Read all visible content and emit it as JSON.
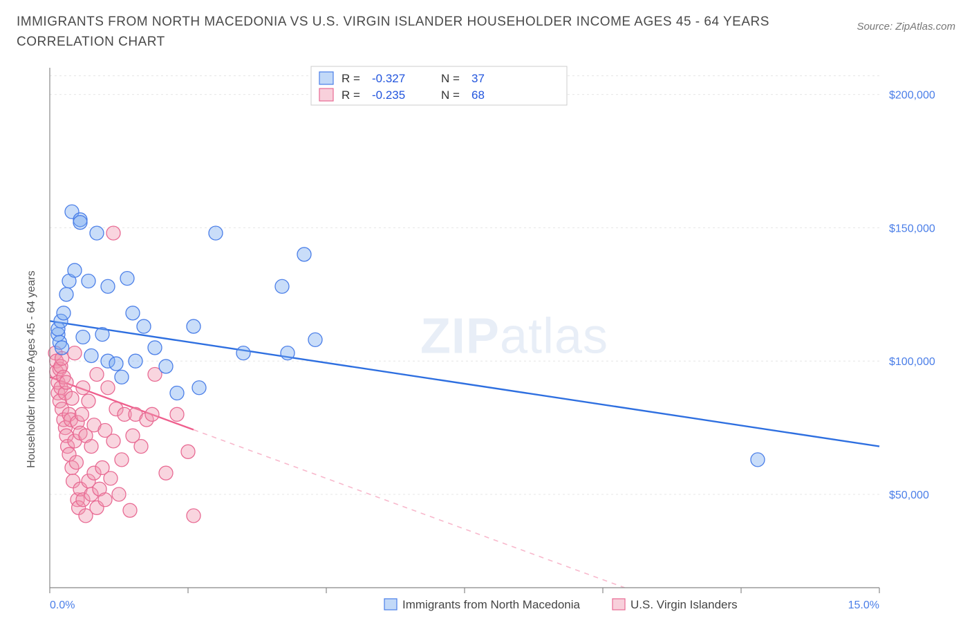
{
  "title": "IMMIGRANTS FROM NORTH MACEDONIA VS U.S. VIRGIN ISLANDER HOUSEHOLDER INCOME AGES 45 - 64 YEARS CORRELATION CHART",
  "source": "Source: ZipAtlas.com",
  "ylabel": "Householder Income Ages 45 - 64 years",
  "watermark_a": "ZIP",
  "watermark_b": "atlas",
  "chart": {
    "type": "scatter",
    "background_color": "#ffffff",
    "grid_color": "#e5e5e5",
    "xlim": [
      0.0,
      15.0
    ],
    "ylim": [
      15000,
      210000
    ],
    "xticks": [
      0.0,
      2.5,
      5.0,
      7.5,
      10.0,
      12.5,
      15.0
    ],
    "xtick_labels_visible": {
      "0.0": "0.0%",
      "15.0": "15.0%"
    },
    "yticks": [
      50000,
      100000,
      150000,
      200000
    ],
    "ytick_labels": [
      "$50,000",
      "$100,000",
      "$150,000",
      "$200,000"
    ],
    "series_a": {
      "name": "Immigrants from North Macedonia",
      "color_fill": "rgba(120,170,240,0.40)",
      "color_stroke": "#4a7ee8",
      "marker_radius": 10,
      "R": -0.327,
      "N": 37,
      "trend": {
        "x1": 0.0,
        "y1": 115000,
        "x2": 15.0,
        "y2": 68000,
        "solid_until_x": 15.0
      },
      "points": [
        [
          0.15,
          110000
        ],
        [
          0.15,
          112000
        ],
        [
          0.18,
          107000
        ],
        [
          0.2,
          115000
        ],
        [
          0.22,
          105000
        ],
        [
          0.25,
          118000
        ],
        [
          0.3,
          125000
        ],
        [
          0.35,
          130000
        ],
        [
          0.4,
          156000
        ],
        [
          0.45,
          134000
        ],
        [
          0.55,
          153000
        ],
        [
          0.6,
          109000
        ],
        [
          0.7,
          130000
        ],
        [
          0.75,
          102000
        ],
        [
          0.85,
          148000
        ],
        [
          0.95,
          110000
        ],
        [
          1.05,
          128000
        ],
        [
          1.05,
          100000
        ],
        [
          1.2,
          99000
        ],
        [
          1.3,
          94000
        ],
        [
          1.4,
          131000
        ],
        [
          1.5,
          118000
        ],
        [
          1.55,
          100000
        ],
        [
          1.7,
          113000
        ],
        [
          1.9,
          105000
        ],
        [
          2.1,
          98000
        ],
        [
          2.3,
          88000
        ],
        [
          2.6,
          113000
        ],
        [
          3.0,
          148000
        ],
        [
          2.7,
          90000
        ],
        [
          3.5,
          103000
        ],
        [
          4.2,
          128000
        ],
        [
          4.3,
          103000
        ],
        [
          4.6,
          140000
        ],
        [
          4.8,
          108000
        ],
        [
          12.8,
          63000
        ],
        [
          0.55,
          152000
        ]
      ]
    },
    "series_b": {
      "name": "U.S. Virgin Islanders",
      "color_fill": "rgba(240,150,175,0.40)",
      "color_stroke": "#e86a93",
      "marker_radius": 10,
      "R": -0.235,
      "N": 68,
      "trend": {
        "x1": 0.0,
        "y1": 94000,
        "x2": 15.0,
        "y2": -20000,
        "solid_until_x": 2.6
      },
      "points": [
        [
          0.1,
          103000
        ],
        [
          0.12,
          100000
        ],
        [
          0.12,
          96000
        ],
        [
          0.15,
          92000
        ],
        [
          0.15,
          88000
        ],
        [
          0.18,
          97000
        ],
        [
          0.18,
          85000
        ],
        [
          0.2,
          98000
        ],
        [
          0.2,
          90000
        ],
        [
          0.22,
          82000
        ],
        [
          0.22,
          101000
        ],
        [
          0.25,
          78000
        ],
        [
          0.25,
          94000
        ],
        [
          0.28,
          75000
        ],
        [
          0.28,
          88000
        ],
        [
          0.3,
          72000
        ],
        [
          0.3,
          92000
        ],
        [
          0.32,
          68000
        ],
        [
          0.35,
          80000
        ],
        [
          0.35,
          65000
        ],
        [
          0.38,
          78000
        ],
        [
          0.4,
          60000
        ],
        [
          0.4,
          86000
        ],
        [
          0.42,
          55000
        ],
        [
          0.45,
          70000
        ],
        [
          0.45,
          103000
        ],
        [
          0.48,
          62000
        ],
        [
          0.5,
          48000
        ],
        [
          0.5,
          77000
        ],
        [
          0.52,
          45000
        ],
        [
          0.55,
          73000
        ],
        [
          0.55,
          52000
        ],
        [
          0.58,
          80000
        ],
        [
          0.6,
          48000
        ],
        [
          0.6,
          90000
        ],
        [
          0.65,
          42000
        ],
        [
          0.65,
          72000
        ],
        [
          0.7,
          55000
        ],
        [
          0.7,
          85000
        ],
        [
          0.75,
          50000
        ],
        [
          0.75,
          68000
        ],
        [
          0.8,
          76000
        ],
        [
          0.8,
          58000
        ],
        [
          0.85,
          45000
        ],
        [
          0.85,
          95000
        ],
        [
          0.9,
          52000
        ],
        [
          0.95,
          60000
        ],
        [
          1.0,
          74000
        ],
        [
          1.0,
          48000
        ],
        [
          1.05,
          90000
        ],
        [
          1.1,
          56000
        ],
        [
          1.15,
          148000
        ],
        [
          1.15,
          70000
        ],
        [
          1.2,
          82000
        ],
        [
          1.25,
          50000
        ],
        [
          1.3,
          63000
        ],
        [
          1.35,
          80000
        ],
        [
          1.45,
          44000
        ],
        [
          1.5,
          72000
        ],
        [
          1.55,
          80000
        ],
        [
          1.65,
          68000
        ],
        [
          1.75,
          78000
        ],
        [
          1.85,
          80000
        ],
        [
          1.9,
          95000
        ],
        [
          2.1,
          58000
        ],
        [
          2.3,
          80000
        ],
        [
          2.5,
          66000
        ],
        [
          2.6,
          42000
        ]
      ]
    }
  },
  "legend": {
    "r_label": "R =",
    "n_label": "N ="
  }
}
